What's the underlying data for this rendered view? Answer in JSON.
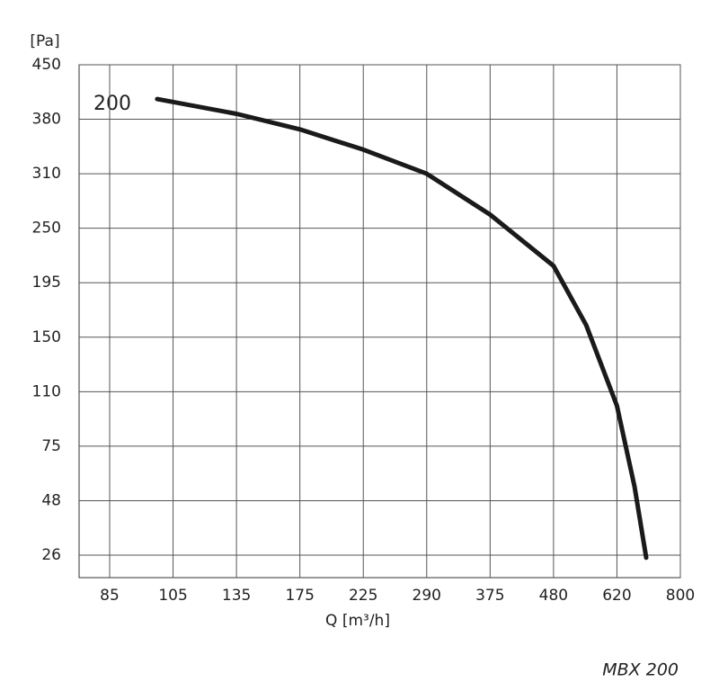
{
  "chart_data": {
    "type": "line",
    "y_label": "[Pa]",
    "x_label": "Q [m³/h]",
    "footer": "MBX 200",
    "x": [
      100,
      135,
      175,
      225,
      290,
      375,
      480,
      552,
      620,
      670,
      703
    ],
    "series": [
      {
        "name": "200",
        "color": "#1a1a1a",
        "values": [
          406,
          387,
          367,
          341,
          310,
          265,
          212,
          160,
          101,
          55,
          25
        ]
      }
    ],
    "xlim": [
      75,
      800
    ],
    "xticks": [
      85,
      105,
      135,
      175,
      225,
      290,
      375,
      480,
      620,
      800
    ],
    "ylim": [
      17,
      450
    ],
    "yticks": [
      26,
      48,
      75,
      110,
      150,
      195,
      250,
      310,
      380,
      450
    ],
    "grid": true
  }
}
